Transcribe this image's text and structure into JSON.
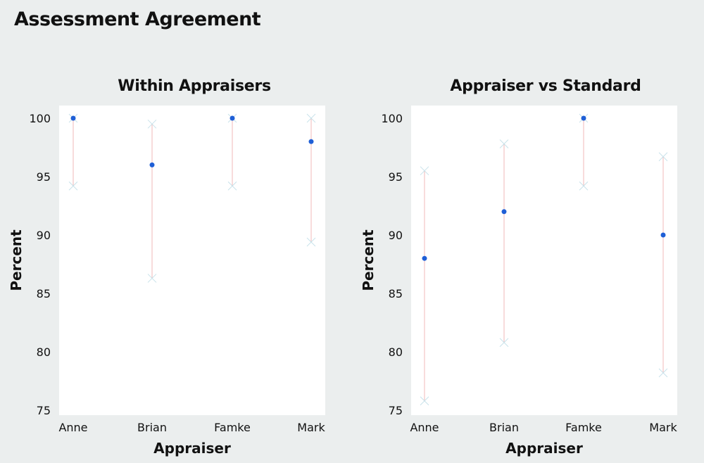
{
  "title": "Assessment Agreement",
  "chart_data": [
    {
      "type": "scatter",
      "title": "Within Appraisers",
      "xlabel": "Appraiser",
      "ylabel": "Percent",
      "categories": [
        "Anne",
        "Brian",
        "Famke",
        "Mark"
      ],
      "values": [
        100,
        96,
        100,
        98
      ],
      "ci_lower": [
        94.2,
        86.3,
        94.2,
        89.4
      ],
      "ci_upper": [
        100,
        99.5,
        100,
        100
      ],
      "ylim": [
        75,
        101.5
      ],
      "yticks": [
        75,
        80,
        85,
        90,
        95,
        100
      ],
      "grid": false,
      "colors": {
        "point": "#1f5fd6",
        "interval": "#f0b8b8",
        "cross": "#c8e2ea"
      }
    },
    {
      "type": "scatter",
      "title": "Appraiser vs Standard",
      "xlabel": "Appraiser",
      "ylabel": "Percent",
      "categories": [
        "Anne",
        "Brian",
        "Famke",
        "Mark"
      ],
      "values": [
        88,
        92,
        100,
        90
      ],
      "ci_lower": [
        75.8,
        80.8,
        94.2,
        78.2
      ],
      "ci_upper": [
        95.5,
        97.8,
        100,
        96.7
      ],
      "ylim": [
        75,
        101.5
      ],
      "yticks": [
        75,
        80,
        85,
        90,
        95,
        100
      ],
      "grid": false,
      "colors": {
        "point": "#1f5fd6",
        "interval": "#f0b8b8",
        "cross": "#c8e2ea"
      }
    }
  ]
}
